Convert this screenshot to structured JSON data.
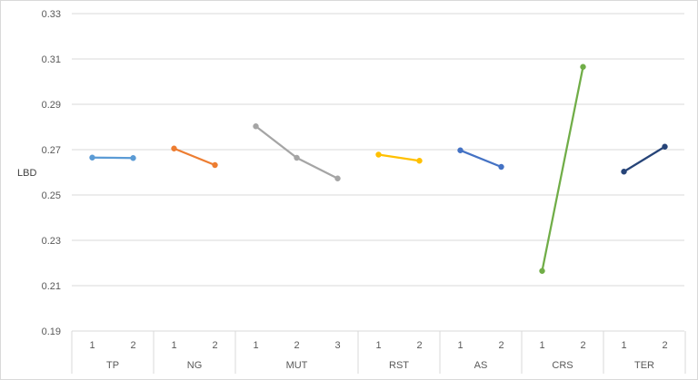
{
  "chart_data": {
    "type": "line",
    "title": "",
    "xlabel": "",
    "ylabel": "LBD",
    "ylim": [
      0.19,
      0.33
    ],
    "yticks": [
      "0.19",
      "0.21",
      "0.23",
      "0.25",
      "0.27",
      "0.29",
      "0.31",
      "0.33"
    ],
    "grid": true,
    "legend": "none",
    "groups": [
      {
        "name": "TP",
        "color": "#5b9bd5",
        "levels": [
          "1",
          "2"
        ],
        "values": [
          0.2665,
          0.2663
        ]
      },
      {
        "name": "NG",
        "color": "#ed7d31",
        "levels": [
          "1",
          "2"
        ],
        "values": [
          0.2705,
          0.2632
        ]
      },
      {
        "name": "MUT",
        "color": "#a5a5a5",
        "levels": [
          "1",
          "2",
          "3"
        ],
        "values": [
          0.2803,
          0.2664,
          0.2573
        ]
      },
      {
        "name": "RST",
        "color": "#ffc000",
        "levels": [
          "1",
          "2"
        ],
        "values": [
          0.2678,
          0.2651
        ]
      },
      {
        "name": "AS",
        "color": "#4472c4",
        "levels": [
          "1",
          "2"
        ],
        "values": [
          0.2697,
          0.2624
        ]
      },
      {
        "name": "CRS",
        "color": "#70ad47",
        "levels": [
          "1",
          "2"
        ],
        "values": [
          0.2165,
          0.3065
        ]
      },
      {
        "name": "TER",
        "color": "#264478",
        "levels": [
          "1",
          "2"
        ],
        "values": [
          0.2603,
          0.2713
        ]
      }
    ]
  }
}
